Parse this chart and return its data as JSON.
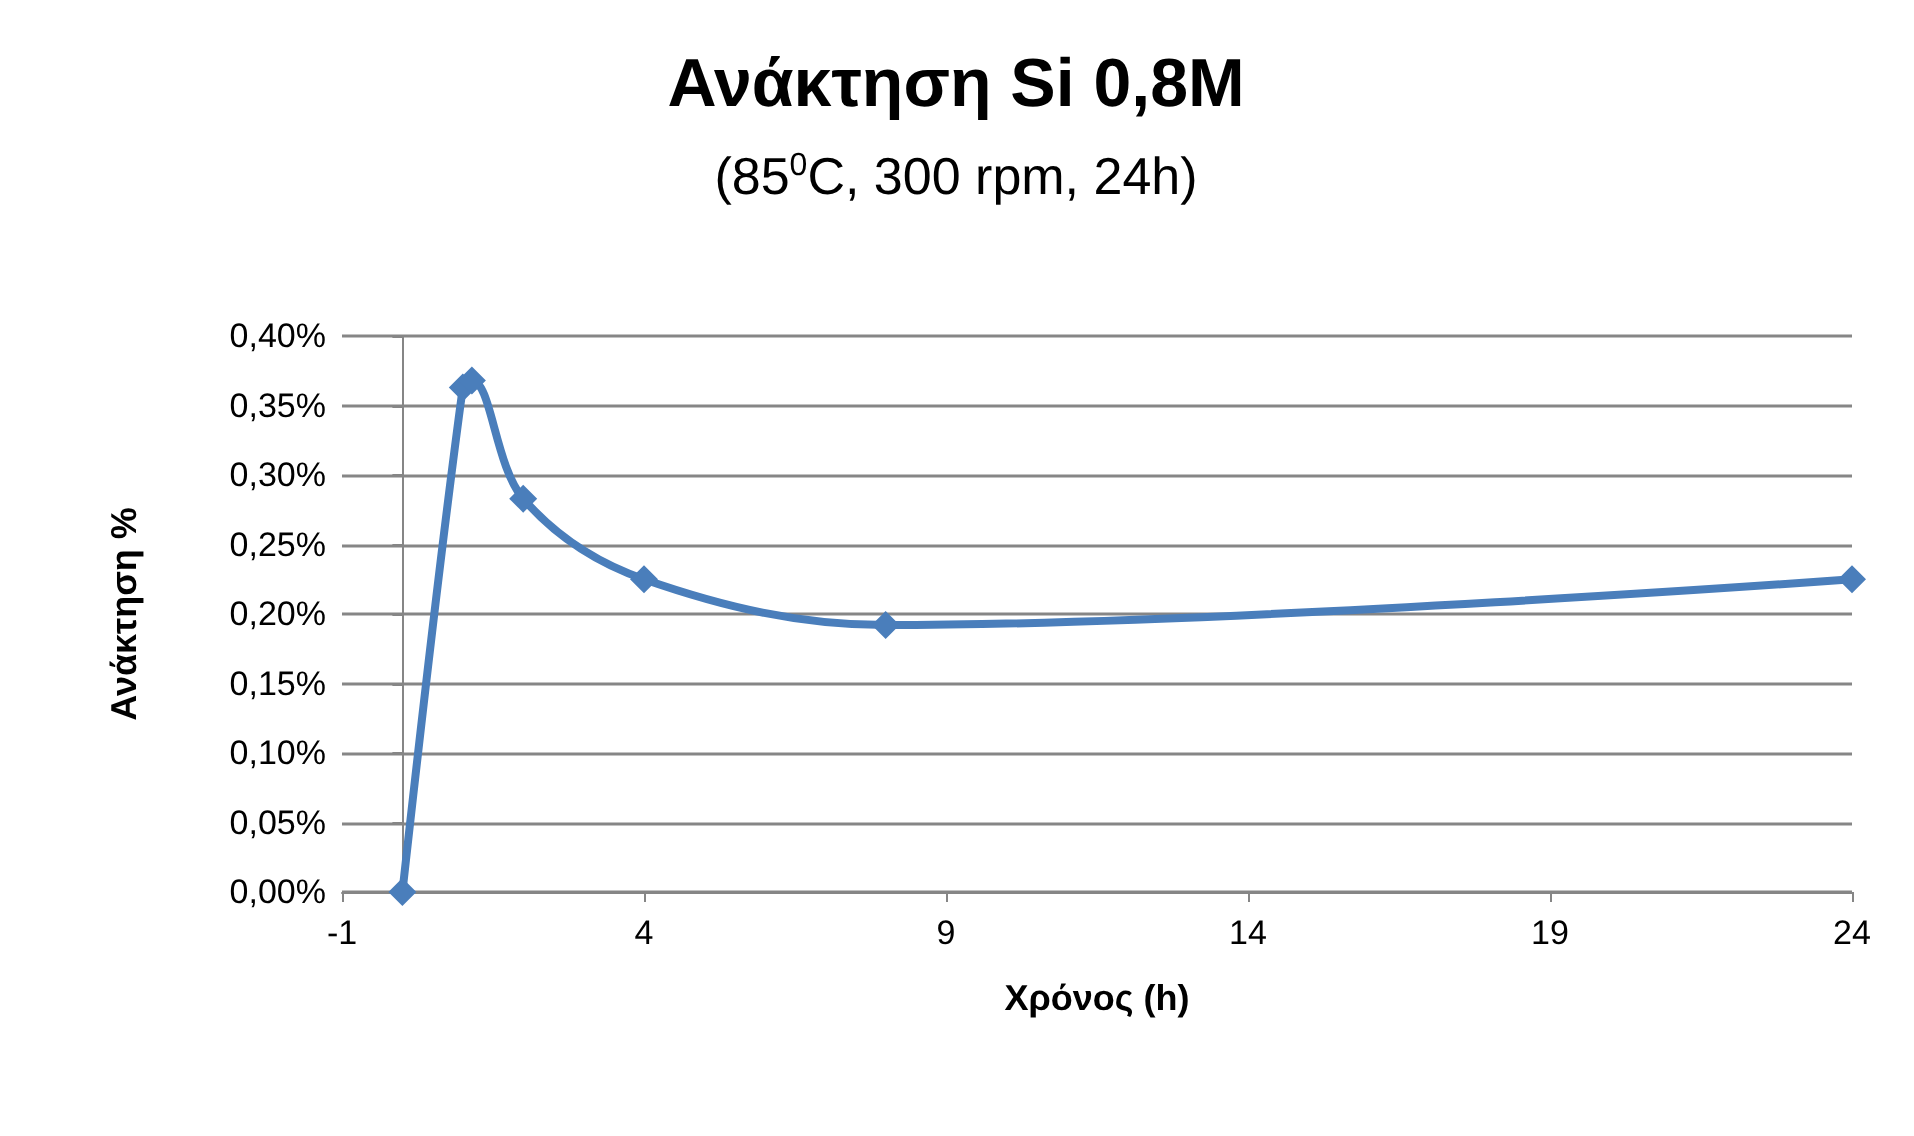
{
  "chart_data": {
    "type": "line",
    "title": "Ανάκτηση Si 0,8M",
    "subtitle": "(85$^{0}$C, 300 rpm, 24h)",
    "xlabel": "Χρόνος (h)",
    "ylabel": "Ανάκτηση %",
    "x": [
      0,
      1,
      1.15,
      2,
      4,
      8,
      24
    ],
    "series": [
      {
        "color": "#4a7ebb",
        "values": [
          0,
          0.363,
          0.368,
          0.283,
          0.225,
          0.192,
          0.225
        ]
      }
    ],
    "xlim": [
      -1,
      24
    ],
    "xticks": [
      -1,
      4,
      9,
      14,
      19,
      24
    ],
    "ylim": [
      0,
      0.4
    ],
    "yticks": [
      {
        "value": 0,
        "label": "0,00%"
      },
      {
        "value": 0.05,
        "label": "0,05%"
      },
      {
        "value": 0.1,
        "label": "0,10%"
      },
      {
        "value": 0.15,
        "label": "0,15%"
      },
      {
        "value": 0.2,
        "label": "0,20%"
      },
      {
        "value": 0.25,
        "label": "0,25%"
      },
      {
        "value": 0.3,
        "label": "0,30%"
      },
      {
        "value": 0.35,
        "label": "0,35%"
      },
      {
        "value": 0.4,
        "label": "0,40%"
      }
    ],
    "grid": "y",
    "marker": "diamond",
    "line_style": "solid"
  }
}
